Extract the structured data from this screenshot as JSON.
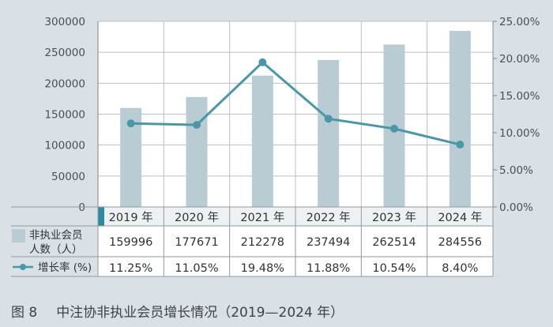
{
  "chart_data": {
    "type": "bar+line",
    "categories": [
      "2019 年",
      "2020 年",
      "2021 年",
      "2022 年",
      "2023 年",
      "2024 年"
    ],
    "series": [
      {
        "name": "非执业会员人数（人）",
        "type": "bar",
        "axis": "left",
        "values": [
          159996,
          177671,
          212278,
          237494,
          262514,
          284556
        ],
        "labels": [
          "159996",
          "177671",
          "212278",
          "237494",
          "262514",
          "284556"
        ]
      },
      {
        "name": "增长率 (%)",
        "type": "line",
        "axis": "right",
        "values": [
          11.25,
          11.05,
          19.48,
          11.88,
          10.54,
          8.4
        ],
        "labels": [
          "11.25%",
          "11.05%",
          "19.48%",
          "11.88%",
          "10.54%",
          "8.40%"
        ]
      }
    ],
    "left_axis": {
      "ylim": [
        0,
        300000
      ],
      "ticks": [
        "0",
        "50000",
        "100000",
        "150000",
        "200000",
        "250000",
        "300000"
      ]
    },
    "right_axis": {
      "ylim": [
        0,
        25
      ],
      "ticks": [
        "0.00%",
        "5.00%",
        "10.00%",
        "15.00%",
        "20.00%",
        "25.00%"
      ]
    },
    "grid": true,
    "legend": "table-left",
    "colors": {
      "bar": "#b9ccd4",
      "line": "#4a97a8",
      "accent": "#2f8aa0",
      "grid": "#b7c1c6",
      "plot_bg": "#ffffff",
      "page_bg": "#d9e1e6"
    }
  },
  "caption": {
    "label": "图 8",
    "title": "中注协非执业会员增长情况（2019—2024 年）"
  }
}
